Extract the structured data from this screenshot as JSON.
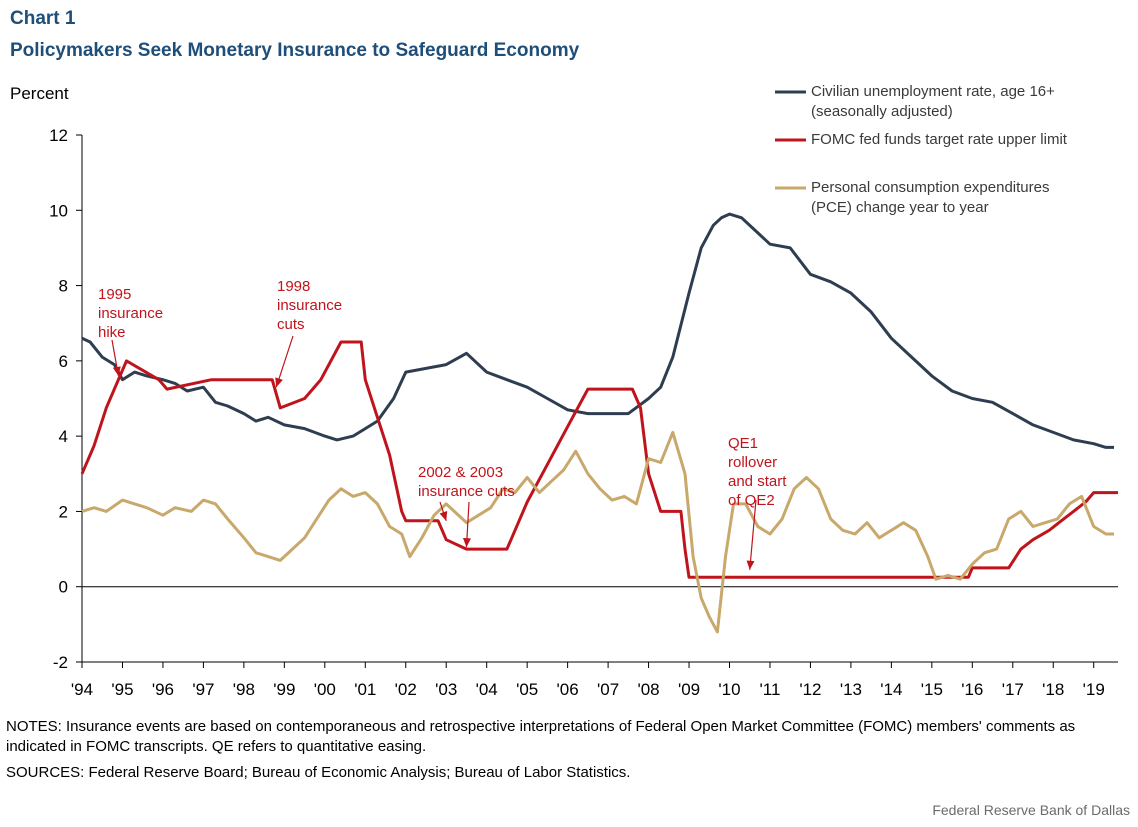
{
  "header": {
    "chart_number": "Chart 1",
    "title": "Policymakers Seek Monetary Insurance to Safeguard Economy"
  },
  "footer": {
    "notes": "NOTES: Insurance events are based on contemporaneous and retrospective interpretations of Federal Open Market Committee (FOMC) members' comments as indicated in FOMC transcripts. QE refers to quantitative easing.",
    "sources": "SOURCES: Federal Reserve Board; Bureau of Economic Analysis; Bureau of Labor Statistics.",
    "credit": "Federal Reserve Bank of Dallas"
  },
  "chart_data": {
    "type": "line",
    "ylabel": "Percent",
    "ylim": [
      -2,
      12
    ],
    "yticks": [
      -2,
      0,
      2,
      4,
      6,
      8,
      10,
      12
    ],
    "xlim": [
      1994.0,
      2019.6
    ],
    "xtick_labels": [
      "'94",
      "'95",
      "'96",
      "'97",
      "'98",
      "'99",
      "'00",
      "'01",
      "'02",
      "'03",
      "'04",
      "'05",
      "'06",
      "'07",
      "'08",
      "'09",
      "'10",
      "'11",
      "'12",
      "'13",
      "'14",
      "'15",
      "'16",
      "'17",
      "'18",
      "'19"
    ],
    "xtick_values": [
      1994,
      1995,
      1996,
      1997,
      1998,
      1999,
      2000,
      2001,
      2002,
      2003,
      2004,
      2005,
      2006,
      2007,
      2008,
      2009,
      2010,
      2011,
      2012,
      2013,
      2014,
      2015,
      2016,
      2017,
      2018,
      2019
    ],
    "grid": false,
    "legend_position": "top-right",
    "series": [
      {
        "name": "Civilian unemployment rate, age 16+ (seasonally adjusted)",
        "legend_lines": [
          "Civilian unemployment rate, age 16+",
          "(seasonally adjusted)"
        ],
        "color": "#2e3e50",
        "x": [
          1994.0,
          1994.2,
          1994.5,
          1994.8,
          1995.0,
          1995.3,
          1995.6,
          1996.0,
          1996.3,
          1996.6,
          1997.0,
          1997.3,
          1997.6,
          1998.0,
          1998.3,
          1998.6,
          1999.0,
          1999.5,
          2000.0,
          2000.3,
          2000.7,
          2001.0,
          2001.3,
          2001.7,
          2002.0,
          2002.5,
          2003.0,
          2003.5,
          2004.0,
          2004.5,
          2005.0,
          2005.5,
          2006.0,
          2006.5,
          2007.0,
          2007.5,
          2008.0,
          2008.3,
          2008.6,
          2009.0,
          2009.3,
          2009.6,
          2009.8,
          2010.0,
          2010.3,
          2010.6,
          2011.0,
          2011.5,
          2012.0,
          2012.5,
          2013.0,
          2013.5,
          2014.0,
          2014.5,
          2015.0,
          2015.5,
          2016.0,
          2016.5,
          2017.0,
          2017.5,
          2018.0,
          2018.5,
          2019.0,
          2019.3,
          2019.5
        ],
        "values": [
          6.6,
          6.5,
          6.1,
          5.9,
          5.5,
          5.7,
          5.6,
          5.5,
          5.4,
          5.2,
          5.3,
          4.9,
          4.8,
          4.6,
          4.4,
          4.5,
          4.3,
          4.2,
          4.0,
          3.9,
          4.0,
          4.2,
          4.4,
          5.0,
          5.7,
          5.8,
          5.9,
          6.2,
          5.7,
          5.5,
          5.3,
          5.0,
          4.7,
          4.6,
          4.6,
          4.6,
          5.0,
          5.3,
          6.1,
          7.8,
          9.0,
          9.6,
          9.8,
          9.9,
          9.8,
          9.5,
          9.1,
          9.0,
          8.3,
          8.1,
          7.8,
          7.3,
          6.6,
          6.1,
          5.6,
          5.2,
          5.0,
          4.9,
          4.6,
          4.3,
          4.1,
          3.9,
          3.8,
          3.7,
          3.7
        ]
      },
      {
        "name": "FOMC fed funds target rate upper limit",
        "legend_lines": [
          "FOMC fed funds target rate upper limit"
        ],
        "color": "#c0141c",
        "x": [
          1994.0,
          1994.3,
          1994.6,
          1994.9,
          1995.1,
          1995.5,
          1995.9,
          1996.1,
          1997.2,
          1998.7,
          1998.9,
          1999.5,
          1999.9,
          2000.4,
          2000.9,
          2001.0,
          2001.3,
          2001.6,
          2001.9,
          2002.0,
          2002.8,
          2003.0,
          2003.5,
          2004.5,
          2004.6,
          2005.0,
          2005.5,
          2006.0,
          2006.5,
          2007.6,
          2007.8,
          2008.0,
          2008.3,
          2008.8,
          2008.9,
          2009.0,
          2015.9,
          2016.0,
          2016.9,
          2017.2,
          2017.5,
          2017.9,
          2018.2,
          2018.5,
          2018.8,
          2019.0,
          2019.6
        ],
        "values": [
          3.0,
          3.75,
          4.75,
          5.5,
          6.0,
          5.75,
          5.5,
          5.25,
          5.5,
          5.5,
          4.75,
          5.0,
          5.5,
          6.5,
          6.5,
          5.5,
          4.5,
          3.5,
          2.0,
          1.75,
          1.75,
          1.25,
          1.0,
          1.0,
          1.25,
          2.25,
          3.25,
          4.25,
          5.25,
          5.25,
          4.75,
          3.0,
          2.0,
          2.0,
          1.0,
          0.25,
          0.25,
          0.5,
          0.5,
          1.0,
          1.25,
          1.5,
          1.75,
          2.0,
          2.25,
          2.5,
          2.5
        ]
      },
      {
        "name": "Personal consumption expenditures (PCE) change year to year",
        "legend_lines": [
          "Personal consumption expenditures",
          "(PCE)  change year to year"
        ],
        "color": "#c8a86b",
        "x": [
          1994.0,
          1994.3,
          1994.6,
          1995.0,
          1995.3,
          1995.6,
          1996.0,
          1996.3,
          1996.7,
          1997.0,
          1997.3,
          1997.6,
          1998.0,
          1998.3,
          1998.6,
          1998.9,
          1999.2,
          1999.5,
          1999.8,
          2000.1,
          2000.4,
          2000.7,
          2001.0,
          2001.3,
          2001.6,
          2001.9,
          2002.1,
          2002.4,
          2002.7,
          2003.0,
          2003.2,
          2003.5,
          2003.8,
          2004.1,
          2004.4,
          2004.7,
          2005.0,
          2005.3,
          2005.6,
          2005.9,
          2006.2,
          2006.5,
          2006.8,
          2007.1,
          2007.4,
          2007.7,
          2008.0,
          2008.3,
          2008.6,
          2008.9,
          2009.1,
          2009.3,
          2009.5,
          2009.7,
          2009.9,
          2010.1,
          2010.4,
          2010.7,
          2011.0,
          2011.3,
          2011.6,
          2011.9,
          2012.2,
          2012.5,
          2012.8,
          2013.1,
          2013.4,
          2013.7,
          2014.0,
          2014.3,
          2014.6,
          2014.9,
          2015.1,
          2015.4,
          2015.7,
          2016.0,
          2016.3,
          2016.6,
          2016.9,
          2017.2,
          2017.5,
          2017.8,
          2018.1,
          2018.4,
          2018.7,
          2019.0,
          2019.3,
          2019.5
        ],
        "values": [
          2.0,
          2.1,
          2.0,
          2.3,
          2.2,
          2.1,
          1.9,
          2.1,
          2.0,
          2.3,
          2.2,
          1.8,
          1.3,
          0.9,
          0.8,
          0.7,
          1.0,
          1.3,
          1.8,
          2.3,
          2.6,
          2.4,
          2.5,
          2.2,
          1.6,
          1.4,
          0.8,
          1.3,
          1.9,
          2.2,
          2.0,
          1.7,
          1.9,
          2.1,
          2.6,
          2.5,
          2.9,
          2.5,
          2.8,
          3.1,
          3.6,
          3.0,
          2.6,
          2.3,
          2.4,
          2.2,
          3.4,
          3.3,
          4.1,
          3.0,
          0.8,
          -0.3,
          -0.8,
          -1.2,
          0.8,
          2.2,
          2.2,
          1.6,
          1.4,
          1.8,
          2.6,
          2.9,
          2.6,
          1.8,
          1.5,
          1.4,
          1.7,
          1.3,
          1.5,
          1.7,
          1.5,
          0.8,
          0.2,
          0.3,
          0.2,
          0.6,
          0.9,
          1.0,
          1.8,
          2.0,
          1.6,
          1.7,
          1.8,
          2.2,
          2.4,
          1.6,
          1.4,
          1.4
        ]
      }
    ],
    "annotations": [
      {
        "id": "ann-1995",
        "lines": [
          "1995",
          "insurance",
          "hike"
        ],
        "color": "#c0141c",
        "target_x": 1994.9,
        "target_y": 5.6
      },
      {
        "id": "ann-1998",
        "lines": [
          "1998",
          "insurance",
          "cuts"
        ],
        "color": "#c0141c",
        "target_x": 1998.8,
        "target_y": 5.3
      },
      {
        "id": "ann-2002",
        "lines": [
          "2002 & 2003",
          "insurance cuts"
        ],
        "color": "#c0141c",
        "target_x": 2003.0,
        "target_y": 1.75
      },
      {
        "id": "ann-2002b",
        "lines": [],
        "color": "#c0141c",
        "target_x": 2003.5,
        "target_y": 1.05
      },
      {
        "id": "ann-qe",
        "lines": [
          "QE1",
          "rollover",
          "and start",
          "of QE2"
        ],
        "color": "#c0141c",
        "target_x": 2010.5,
        "target_y": 0.45
      }
    ]
  }
}
